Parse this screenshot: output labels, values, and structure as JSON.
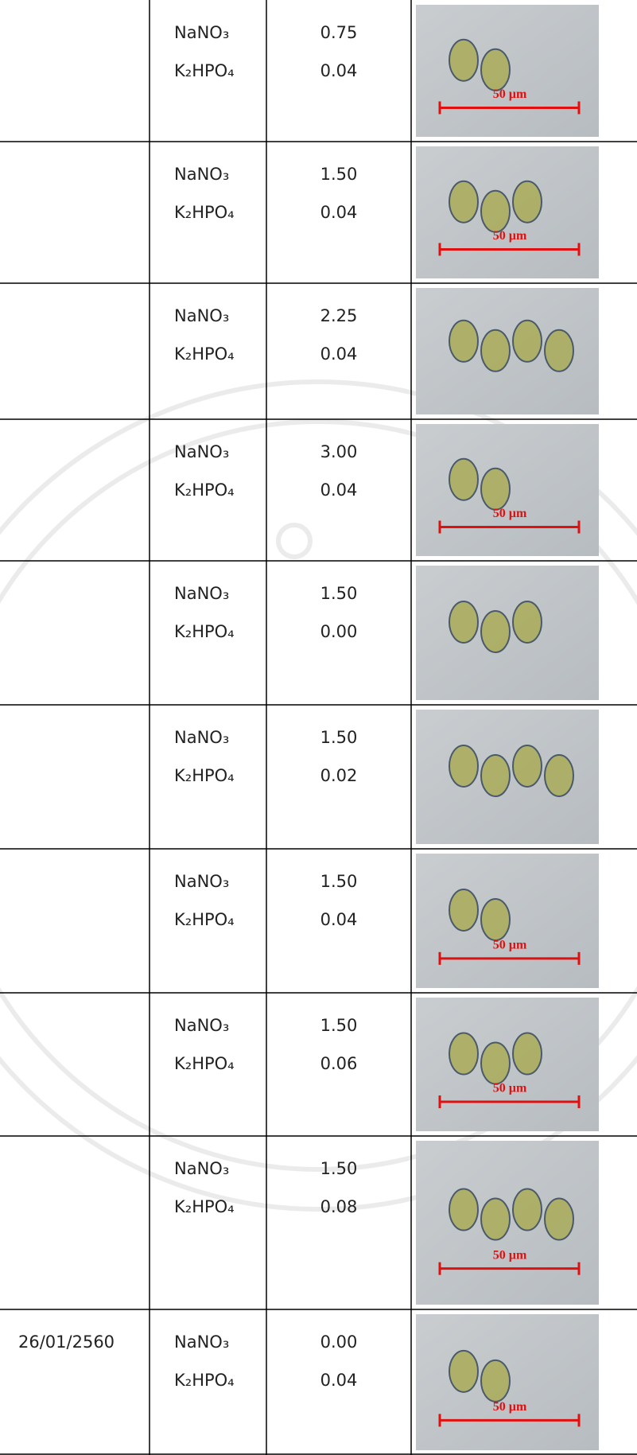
{
  "table": {
    "rows": [
      {
        "date": null,
        "nutrients": [
          "NaNO₃",
          "K₂HPO₄"
        ],
        "amounts": [
          "0.75",
          "0.04"
        ],
        "scale": "50 µm"
      },
      {
        "date": null,
        "nutrients": [
          "NaNO₃",
          "K₂HPO₄"
        ],
        "amounts": [
          "1.50",
          "0.04"
        ],
        "scale": "50 µm"
      },
      {
        "date": null,
        "nutrients": [
          "NaNO₃",
          "K₂HPO₄"
        ],
        "amounts": [
          "2.25",
          "0.04"
        ],
        "scale": null
      },
      {
        "date": null,
        "nutrients": [
          "NaNO₃",
          "K₂HPO₄"
        ],
        "amounts": [
          "3.00",
          "0.04"
        ],
        "scale": "50 µm"
      },
      {
        "date": null,
        "nutrients": [
          "NaNO₃",
          "K₂HPO₄"
        ],
        "amounts": [
          "1.50",
          "0.00"
        ],
        "scale": null
      },
      {
        "date": null,
        "nutrients": [
          "NaNO₃",
          "K₂HPO₄"
        ],
        "amounts": [
          "1.50",
          "0.02"
        ],
        "scale": null
      },
      {
        "date": null,
        "nutrients": [
          "NaNO₃",
          "K₂HPO₄"
        ],
        "amounts": [
          "1.50",
          "0.04"
        ],
        "scale": "50 µm"
      },
      {
        "date": null,
        "nutrients": [
          "NaNO₃",
          "K₂HPO₄"
        ],
        "amounts": [
          "1.50",
          "0.06"
        ],
        "scale": "50 µm"
      },
      {
        "date": null,
        "nutrients": [
          "NaNO₃",
          "K₂HPO₄"
        ],
        "amounts": [
          "1.50",
          "0.08"
        ],
        "scale": "50 µm"
      },
      {
        "date": "26/01/2560",
        "nutrients": [
          "NaNO₃",
          "K₂HPO₄"
        ],
        "amounts": [
          "0.00",
          "0.04"
        ],
        "scale": "50 µm"
      }
    ]
  }
}
